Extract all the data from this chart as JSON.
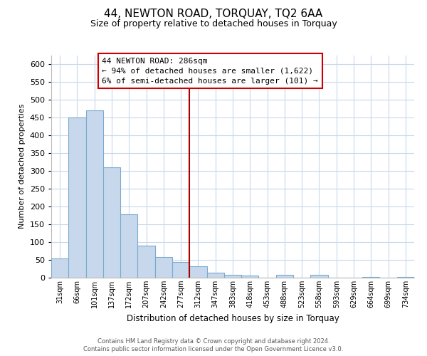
{
  "title": "44, NEWTON ROAD, TORQUAY, TQ2 6AA",
  "subtitle": "Size of property relative to detached houses in Torquay",
  "xlabel": "Distribution of detached houses by size in Torquay",
  "ylabel": "Number of detached properties",
  "bar_labels": [
    "31sqm",
    "66sqm",
    "101sqm",
    "137sqm",
    "172sqm",
    "207sqm",
    "242sqm",
    "277sqm",
    "312sqm",
    "347sqm",
    "383sqm",
    "418sqm",
    "453sqm",
    "488sqm",
    "523sqm",
    "558sqm",
    "593sqm",
    "629sqm",
    "664sqm",
    "699sqm",
    "734sqm"
  ],
  "bar_values": [
    55,
    450,
    470,
    310,
    178,
    90,
    58,
    45,
    33,
    15,
    8,
    7,
    0,
    8,
    0,
    8,
    0,
    0,
    3,
    0,
    3
  ],
  "bar_color": "#c8d8ec",
  "bar_edge_color": "#7aaacf",
  "property_line_x": 7.5,
  "annotation_line1": "44 NEWTON ROAD: 286sqm",
  "annotation_line2": "← 94% of detached houses are smaller (1,622)",
  "annotation_line3": "6% of semi-detached houses are larger (101) →",
  "line_color": "#aa0000",
  "annotation_box_color": "#ffffff",
  "annotation_box_edge": "#cc0000",
  "ylim": [
    0,
    625
  ],
  "yticks": [
    0,
    50,
    100,
    150,
    200,
    250,
    300,
    350,
    400,
    450,
    500,
    550,
    600
  ],
  "footer1": "Contains HM Land Registry data © Crown copyright and database right 2024.",
  "footer2": "Contains public sector information licensed under the Open Government Licence v3.0.",
  "bg_color": "#ffffff",
  "grid_color": "#c8d8ec",
  "title_fontsize": 11,
  "subtitle_fontsize": 9
}
